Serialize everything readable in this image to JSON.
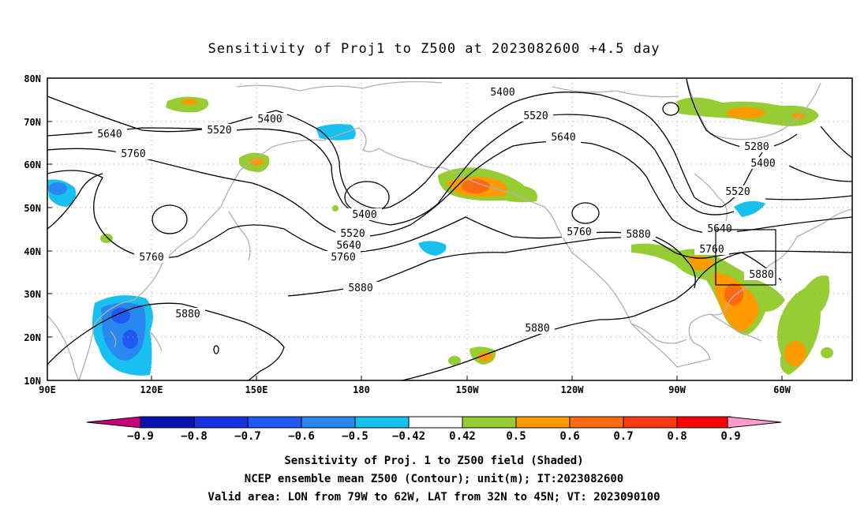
{
  "title": "Sensitivity of Proj1 to Z500 at 2023082600 +4.5 day",
  "lat_labels": [
    "80N",
    "70N",
    "60N",
    "50N",
    "40N",
    "30N",
    "20N",
    "10N"
  ],
  "lon_labels": [
    "90E",
    "120E",
    "150E",
    "180",
    "150W",
    "120W",
    "90W",
    "60W"
  ],
  "contour_labels": [
    "5400",
    "5520",
    "5640",
    "5760",
    "5400",
    "5520",
    "5640",
    "5400",
    "5520",
    "5640",
    "5760",
    "5880",
    "5760",
    "5880",
    "5880",
    "5280",
    "5400",
    "5520",
    "5640",
    "5760",
    "5880",
    "5760",
    "5880"
  ],
  "colorbar": {
    "labels": [
      "-0.9",
      "-0.8",
      "-0.7",
      "-0.6",
      "-0.5",
      "-0.42",
      "0.42",
      "0.5",
      "0.6",
      "0.7",
      "0.8",
      "0.9"
    ],
    "colors": [
      "#c8007a",
      "#0a12b0",
      "#1832e0",
      "#1e5af0",
      "#2888f0",
      "#18c0f0",
      "#ffffff",
      "#96cd32",
      "#ff9a00",
      "#ff6a10",
      "#ff3a10",
      "#ff0000",
      "#ff9ccc"
    ]
  },
  "captions": {
    "line1": "Sensitivity of Proj. 1 to Z500 field (Shaded)",
    "line2": "NCEP ensemble mean Z500 (Contour); unit(m); IT:2023082600",
    "line3": "Valid area: LON from 79W to 62W, LAT from 32N to 45N; VT: 2023090100"
  }
}
